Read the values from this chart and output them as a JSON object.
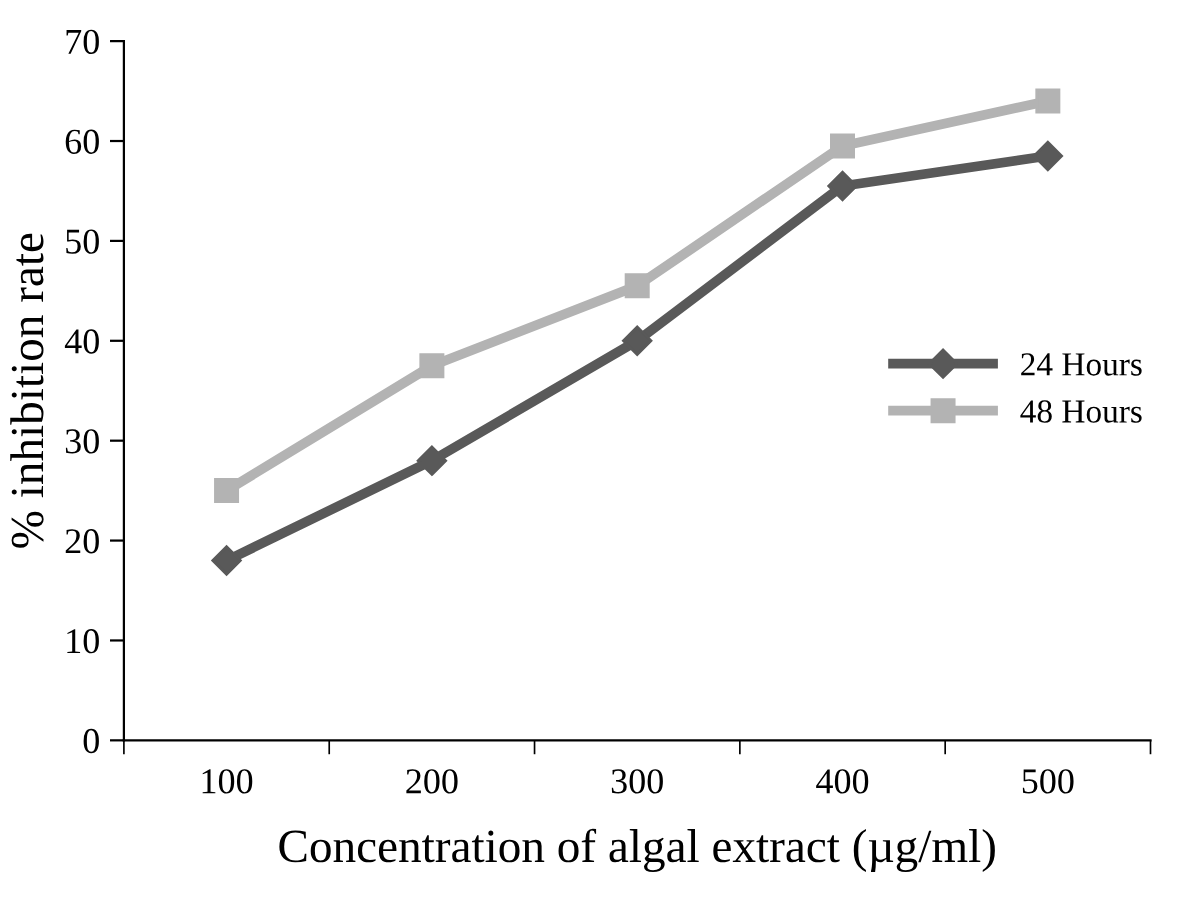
{
  "chart_data": {
    "type": "line",
    "xlabel": "Concentration of algal extract (µg/ml)",
    "ylabel": "% inhibition rate",
    "categories": [
      "100",
      "200",
      "300",
      "400",
      "500"
    ],
    "series": [
      {
        "name": "24 Hours",
        "color": "#595959",
        "marker": "diamond",
        "values": [
          18,
          28,
          40,
          55.5,
          58.5
        ]
      },
      {
        "name": "48 Hours",
        "color": "#b3b3b3",
        "marker": "square",
        "values": [
          25,
          37.5,
          45.5,
          59.5,
          64
        ]
      }
    ],
    "ylim": [
      0,
      70
    ],
    "yticks": [
      0,
      10,
      20,
      30,
      40,
      50,
      60,
      70
    ],
    "grid": false,
    "legend": "right",
    "line_style": "solid"
  }
}
